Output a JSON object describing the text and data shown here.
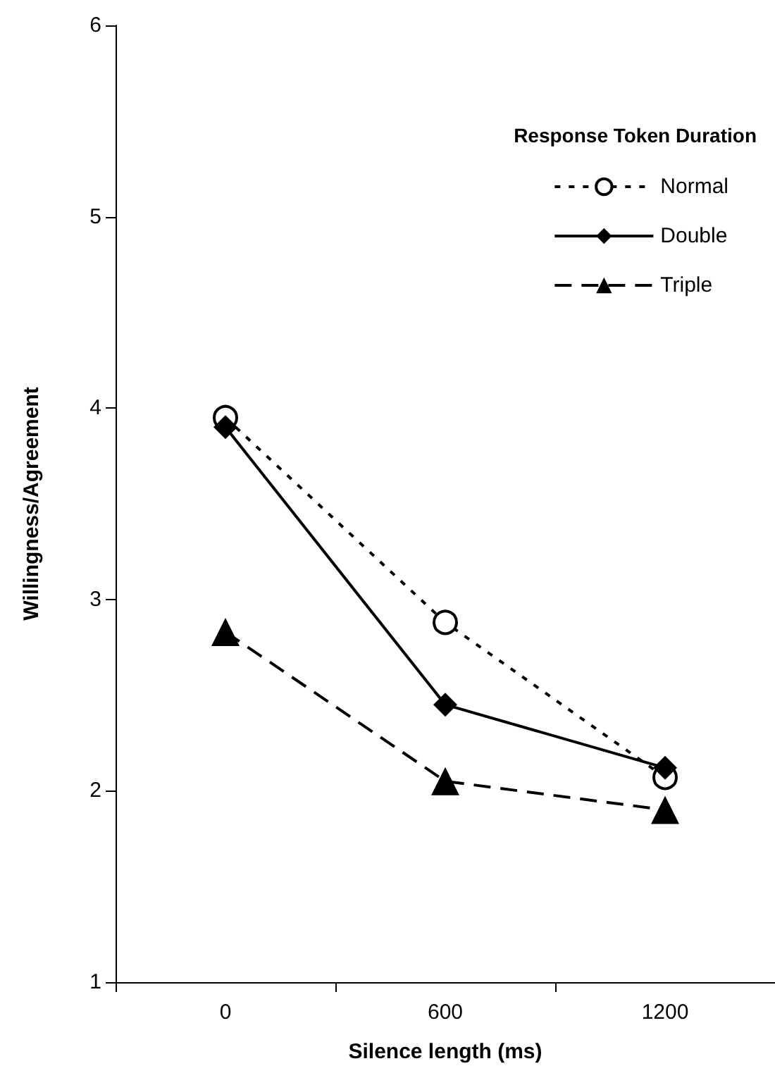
{
  "chart_data": {
    "type": "line",
    "xlabel": "Silence length (ms)",
    "ylabel": "Willingness/Agreement",
    "legend_title": "Response Token Duration",
    "categories": [
      "0",
      "600",
      "1200"
    ],
    "series": [
      {
        "name": "Normal",
        "color": "#000000",
        "values": [
          3.95,
          2.88,
          2.07
        ],
        "marker": "circle",
        "line_style": "dotted"
      },
      {
        "name": "Double",
        "color": "#000000",
        "values": [
          3.9,
          2.45,
          2.12
        ],
        "marker": "diamond",
        "line_style": "solid"
      },
      {
        "name": "Triple",
        "color": "#000000",
        "values": [
          2.83,
          2.05,
          1.9
        ],
        "marker": "triangle",
        "line_style": "dashed"
      }
    ],
    "ylim": [
      1,
      6
    ],
    "yticks": [
      1,
      2,
      3,
      4,
      5,
      6
    ],
    "grid": false,
    "legend": "top right"
  }
}
